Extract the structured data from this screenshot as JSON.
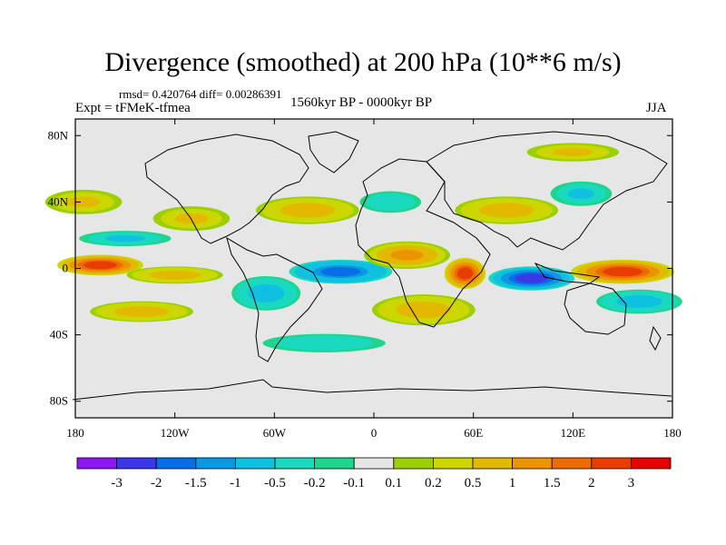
{
  "title": "Divergence (smoothed) at 200 hPa (10**6 m/s)",
  "stats": "rmsd= 0.420764 diff= 0.00286391",
  "experiment": "Expt = tFMeK-tfmea",
  "period": "1560kyr BP - 0000kyr BP",
  "season": "JJA",
  "map": {
    "lon_range": [
      -180,
      180
    ],
    "lat_range": [
      -90,
      90
    ],
    "x_ticks": [
      {
        "lon": -180,
        "label": "180"
      },
      {
        "lon": -120,
        "label": "120W"
      },
      {
        "lon": -60,
        "label": "60W"
      },
      {
        "lon": 0,
        "label": "0"
      },
      {
        "lon": 60,
        "label": "60E"
      },
      {
        "lon": 120,
        "label": "120E"
      },
      {
        "lon": 180,
        "label": "180"
      }
    ],
    "y_ticks": [
      {
        "lat": 80,
        "label": "80N"
      },
      {
        "lat": 40,
        "label": "40N"
      },
      {
        "lat": 0,
        "label": "0"
      },
      {
        "lat": -40,
        "label": "40S"
      },
      {
        "lat": -80,
        "label": "80S"
      }
    ],
    "background_color": "#e6e6e6",
    "anomalies": [
      {
        "name": "central-pacific-positive",
        "lon": -165,
        "lat": 2,
        "dlon": 25,
        "dlat": 6,
        "value": 2.0
      },
      {
        "name": "east-pacific-positive",
        "lon": -120,
        "lat": -4,
        "dlon": 28,
        "dlat": 5,
        "value": 0.8
      },
      {
        "name": "equatorial-atlantic-negative",
        "lon": -20,
        "lat": -2,
        "dlon": 30,
        "dlat": 7,
        "value": -1.8
      },
      {
        "name": "amazon-negative",
        "lon": -65,
        "lat": -15,
        "dlon": 20,
        "dlat": 10,
        "value": -0.8
      },
      {
        "name": "africa-positive",
        "lon": 20,
        "lat": 8,
        "dlon": 25,
        "dlat": 8,
        "value": 1.2
      },
      {
        "name": "east-africa-positive",
        "lon": 55,
        "lat": -3,
        "dlon": 12,
        "dlat": 9,
        "value": 2.2
      },
      {
        "name": "indian-ocean-negative",
        "lon": 95,
        "lat": -6,
        "dlon": 25,
        "dlat": 7,
        "value": -2.3
      },
      {
        "name": "west-pacific-positive",
        "lon": 150,
        "lat": -2,
        "dlon": 30,
        "dlat": 7,
        "value": 2.0
      },
      {
        "name": "south-pacific-negative",
        "lon": 160,
        "lat": -20,
        "dlon": 25,
        "dlat": 7,
        "value": -0.8
      },
      {
        "name": "south-atlantic-positive",
        "lon": 30,
        "lat": -25,
        "dlon": 30,
        "dlat": 9,
        "value": 0.8
      },
      {
        "name": "south-pacific-positive",
        "lon": -140,
        "lat": -26,
        "dlon": 30,
        "dlat": 6,
        "value": 0.8
      },
      {
        "name": "southern-ocean-negative",
        "lon": -30,
        "lat": -45,
        "dlon": 40,
        "dlat": 6,
        "value": -0.5
      },
      {
        "name": "north-america-positive",
        "lon": -110,
        "lat": 30,
        "dlon": 25,
        "dlat": 8,
        "value": 0.6
      },
      {
        "name": "north-atlantic-positive",
        "lon": -40,
        "lat": 35,
        "dlon": 30,
        "dlat": 8,
        "value": 0.8
      },
      {
        "name": "europe-negative",
        "lon": 10,
        "lat": 40,
        "dlon": 20,
        "dlat": 7,
        "value": -0.5
      },
      {
        "name": "asia-positive",
        "lon": 80,
        "lat": 35,
        "dlon": 30,
        "dlat": 8,
        "value": 0.9
      },
      {
        "name": "east-asia-negative",
        "lon": 125,
        "lat": 45,
        "dlon": 20,
        "dlat": 8,
        "value": -0.6
      },
      {
        "name": "north-pacific-positive",
        "lon": -175,
        "lat": 40,
        "dlon": 25,
        "dlat": 8,
        "value": 0.6
      },
      {
        "name": "subtropical-pacific-negative",
        "lon": -150,
        "lat": 18,
        "dlon": 30,
        "dlat": 5,
        "value": -0.6
      },
      {
        "name": "arctic-positive",
        "lon": 120,
        "lat": 70,
        "dlon": 30,
        "dlat": 6,
        "value": 0.5
      }
    ]
  },
  "colorbar": {
    "colors": [
      "#8c17f0",
      "#3b36e8",
      "#0a6de8",
      "#0a98e0",
      "#10c0e0",
      "#19d9c0",
      "#1fd58e",
      "#e6e6e6",
      "#9ccf00",
      "#ccd600",
      "#e3b800",
      "#ec9400",
      "#ec6c00",
      "#e83c00",
      "#e60000"
    ],
    "labels": [
      "-3",
      "-2",
      "-1.5",
      "-1",
      "-0.5",
      "-0.2",
      "-0.1",
      "0.1",
      "0.2",
      "0.5",
      "1",
      "1.5",
      "2",
      "3"
    ]
  }
}
